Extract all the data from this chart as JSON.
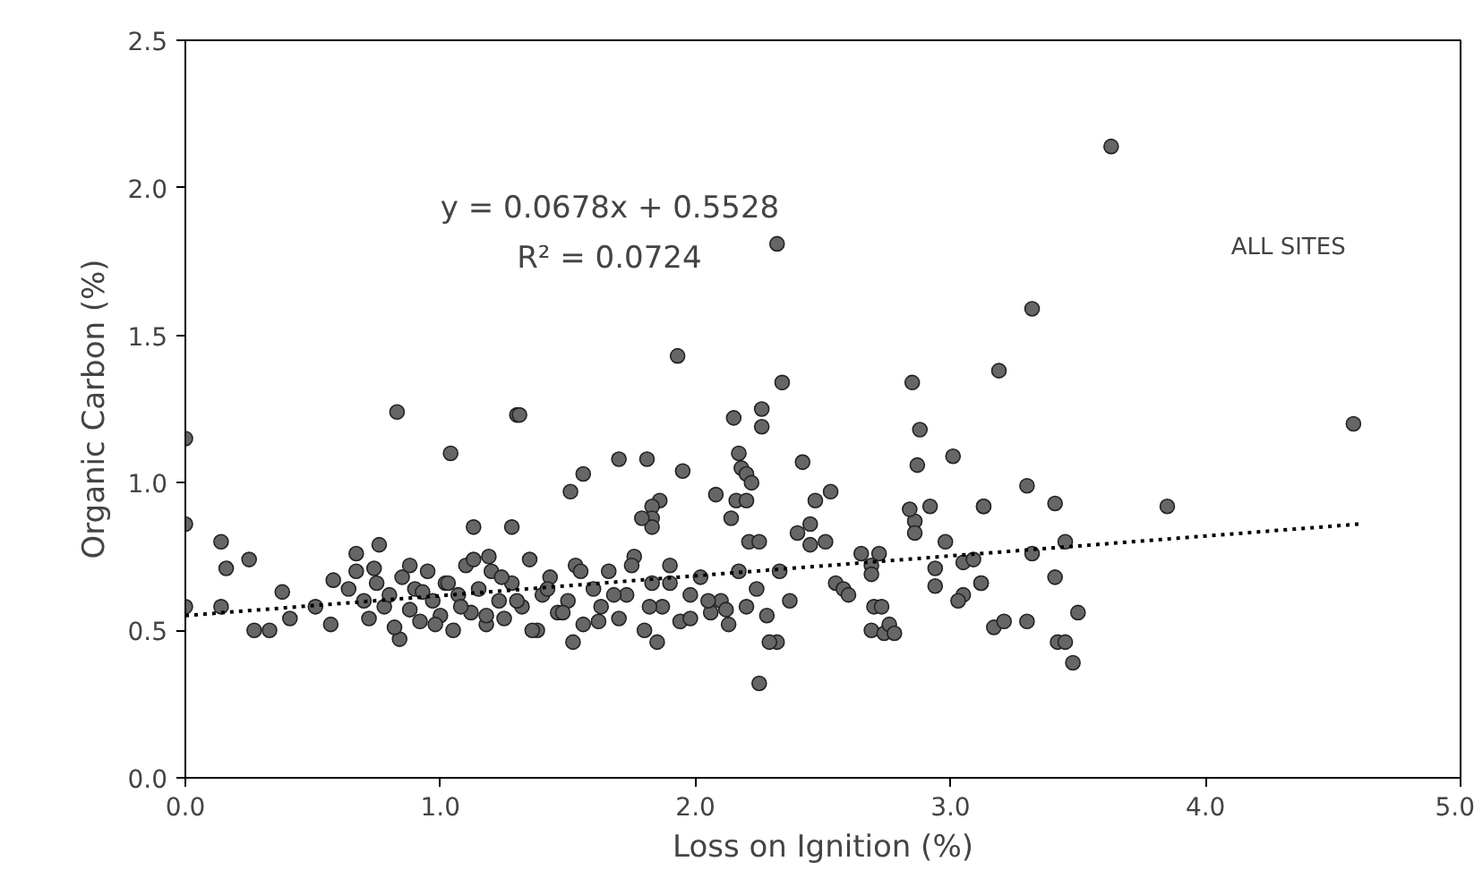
{
  "chart_data": {
    "type": "scatter",
    "xlabel": "Loss on Ignition (%)",
    "ylabel": "Organic Carbon (%)",
    "annotations": [
      "y = 0.0678x + 0.5528",
      "R² = 0.0724",
      "ALL SITES"
    ],
    "xlim": [
      0,
      5
    ],
    "ylim": [
      0,
      2.5
    ],
    "xticks": [
      {
        "value": 0,
        "label": "0.0"
      },
      {
        "value": 1,
        "label": "1.0"
      },
      {
        "value": 2,
        "label": "2.0"
      },
      {
        "value": 3,
        "label": "3.0"
      },
      {
        "value": 4,
        "label": "4.0"
      },
      {
        "value": 5,
        "label": "5.0"
      }
    ],
    "yticks": [
      {
        "value": 0,
        "label": "0.0"
      },
      {
        "value": 0.5,
        "label": "0.5"
      },
      {
        "value": 1,
        "label": "1.0"
      },
      {
        "value": 1.5,
        "label": "1.5"
      },
      {
        "value": 2,
        "label": "2.0"
      },
      {
        "value": 2.5,
        "label": "2.5"
      }
    ],
    "grid": false,
    "series": [
      {
        "color": "#666666",
        "marker": "circle",
        "x": [
          0,
          0,
          0,
          0.14,
          0.16,
          0.14,
          0.25,
          0.27,
          0.33,
          0.38,
          0.41,
          0.51,
          0.57,
          0.58,
          0.64,
          0.67,
          0.67,
          0.74,
          0.76,
          0.83,
          0.84,
          1.04,
          1.13,
          1.3,
          1.19,
          1.28,
          2.32,
          1.93,
          2.34,
          2.85,
          1.31,
          2.15,
          2.26,
          2.26,
          2.88,
          2.87,
          3.01,
          1.7,
          1.81,
          1.95,
          2.42,
          1.56,
          1.51,
          2.17,
          2.18,
          2.2,
          2.22,
          2.53,
          2.08,
          1.86,
          1.83,
          1.83,
          1.83,
          1.79,
          2.16,
          2.2,
          2.47,
          2.45,
          2.14,
          2.4,
          2.45,
          2.51,
          2.21,
          2.25,
          2.86,
          2.86,
          2.84,
          2.92,
          3.13,
          2.98,
          2.94,
          2.94,
          3.05,
          3.12,
          3.05,
          3.03,
          2.25,
          2.72,
          2.65,
          2.69,
          2.69,
          2.7,
          2.73,
          2.69,
          2.74,
          2.76,
          2.78,
          2.55,
          2.58,
          2.6,
          2.32,
          2.29,
          1.52,
          1.85,
          3.63,
          3.32,
          3.19,
          4.58,
          3.3,
          3.13,
          3.41,
          3.85,
          3.45,
          3.32,
          3.09,
          3.12,
          3.41,
          3.5,
          3.17,
          3.21,
          3.3,
          3.42,
          3.45,
          3.48,
          0.7,
          0.72,
          0.75,
          0.78,
          0.8,
          0.82,
          0.85,
          0.88,
          0.9,
          0.92,
          0.95,
          0.97,
          1.0,
          1.02,
          1.05,
          1.07,
          1.1,
          1.12,
          1.15,
          1.18,
          1.2,
          1.23,
          1.25,
          1.28,
          1.32,
          1.35,
          1.38,
          1.4,
          1.43,
          1.46,
          1.5,
          1.53,
          1.56,
          1.6,
          1.63,
          1.66,
          1.7,
          1.73,
          1.76,
          1.8,
          1.83,
          1.87,
          1.9,
          1.94,
          1.98,
          2.02,
          2.06,
          2.1,
          2.13,
          2.17,
          2.2,
          2.24,
          2.28,
          2.33,
          2.37,
          0.88,
          0.93,
          0.98,
          1.03,
          1.08,
          1.13,
          1.18,
          1.24,
          1.3,
          1.36,
          1.42,
          1.48,
          1.55,
          1.62,
          1.68,
          1.75,
          1.82,
          1.9,
          1.98,
          2.05,
          2.12
        ],
        "values": [
          1.15,
          0.86,
          0.58,
          0.8,
          0.71,
          0.58,
          0.74,
          0.5,
          0.5,
          0.63,
          0.54,
          0.58,
          0.52,
          0.67,
          0.64,
          0.76,
          0.7,
          0.71,
          0.79,
          1.24,
          0.47,
          1.1,
          0.85,
          1.23,
          0.75,
          0.85,
          1.81,
          1.43,
          1.34,
          1.34,
          1.23,
          1.22,
          1.25,
          1.19,
          1.18,
          1.06,
          1.09,
          1.08,
          1.08,
          1.04,
          1.07,
          1.03,
          0.97,
          1.1,
          1.05,
          1.03,
          1.0,
          0.97,
          0.96,
          0.94,
          0.92,
          0.88,
          0.85,
          0.88,
          0.94,
          0.94,
          0.94,
          0.86,
          0.88,
          0.83,
          0.79,
          0.8,
          0.8,
          0.8,
          0.87,
          0.83,
          0.91,
          0.92,
          0.92,
          0.8,
          0.71,
          0.65,
          0.73,
          0.66,
          0.62,
          0.6,
          0.32,
          0.76,
          0.76,
          0.72,
          0.69,
          0.58,
          0.58,
          0.5,
          0.49,
          0.52,
          0.49,
          0.66,
          0.64,
          0.62,
          0.46,
          0.46,
          0.46,
          0.46,
          2.14,
          1.59,
          1.38,
          1.2,
          0.99,
          0.92,
          0.93,
          0.92,
          0.8,
          0.76,
          0.74,
          0.66,
          0.68,
          0.56,
          0.51,
          0.53,
          0.53,
          0.46,
          0.46,
          0.39,
          0.6,
          0.54,
          0.66,
          0.58,
          0.62,
          0.51,
          0.68,
          0.57,
          0.64,
          0.53,
          0.7,
          0.6,
          0.55,
          0.66,
          0.5,
          0.62,
          0.72,
          0.56,
          0.64,
          0.52,
          0.7,
          0.6,
          0.54,
          0.66,
          0.58,
          0.74,
          0.5,
          0.62,
          0.68,
          0.56,
          0.6,
          0.72,
          0.52,
          0.64,
          0.58,
          0.7,
          0.54,
          0.62,
          0.75,
          0.5,
          0.66,
          0.58,
          0.72,
          0.53,
          0.62,
          0.68,
          0.56,
          0.6,
          0.52,
          0.7,
          0.58,
          0.64,
          0.55,
          0.7,
          0.6,
          0.72,
          0.63,
          0.52,
          0.66,
          0.58,
          0.74,
          0.55,
          0.68,
          0.6,
          0.5,
          0.64,
          0.56,
          0.7,
          0.53,
          0.62,
          0.72,
          0.58,
          0.66,
          0.54,
          0.6,
          0.57
        ]
      },
      {
        "type": "line",
        "color": "#000000",
        "line_style": "dotted",
        "marker": "none",
        "x": [
          0,
          4.6
        ],
        "values": [
          0.55,
          0.86
        ]
      }
    ]
  }
}
